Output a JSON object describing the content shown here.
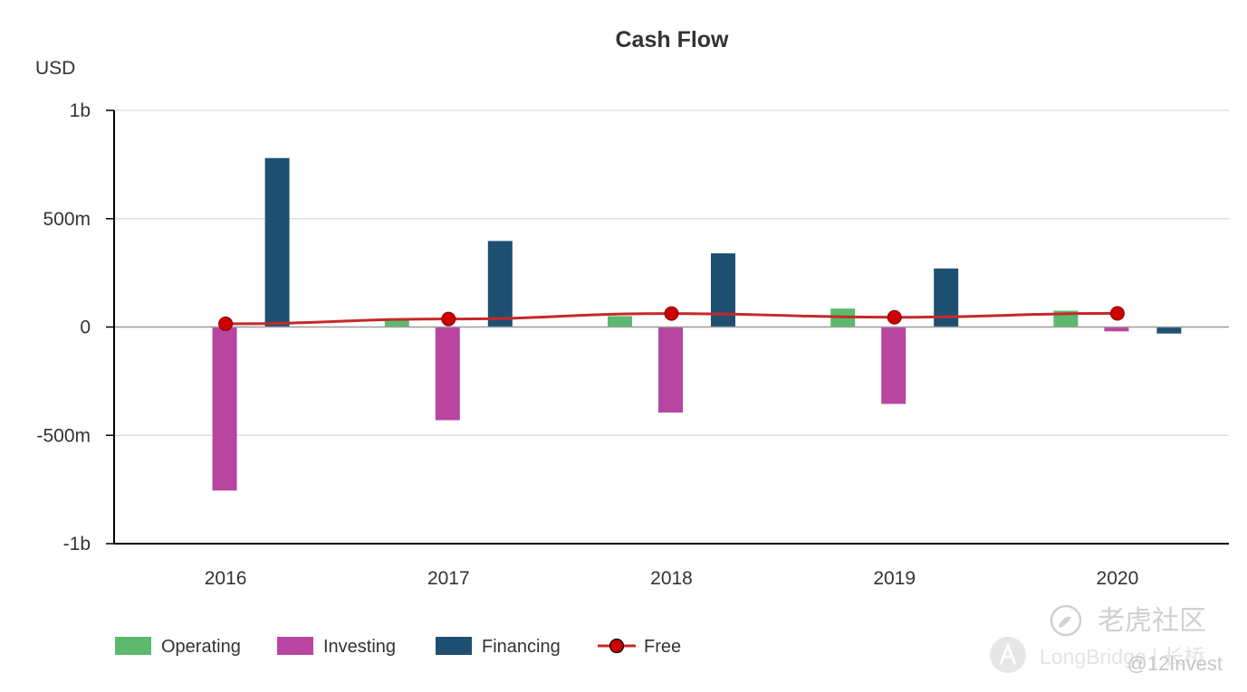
{
  "chart_data": {
    "type": "bar",
    "title": "Cash Flow",
    "ylabel": "USD",
    "xlabel": "",
    "ylim": [
      -1000000000,
      1000000000
    ],
    "yticks": [
      {
        "value": 1000000000,
        "label": "1b"
      },
      {
        "value": 500000000,
        "label": "500m"
      },
      {
        "value": 0,
        "label": "0"
      },
      {
        "value": -500000000,
        "label": "-500m"
      },
      {
        "value": -1000000000,
        "label": "-1b"
      }
    ],
    "categories": [
      "2016",
      "2017",
      "2018",
      "2019",
      "2020"
    ],
    "series": [
      {
        "name": "Operating",
        "kind": "bar",
        "color": "#5cb96e",
        "values": [
          0,
          35000000,
          50000000,
          85000000,
          75000000
        ]
      },
      {
        "name": "Investing",
        "kind": "bar",
        "color": "#b845a0",
        "values": [
          -755000000,
          -430000000,
          -395000000,
          -355000000,
          -20000000
        ]
      },
      {
        "name": "Financing",
        "kind": "bar",
        "color": "#1d5070",
        "values": [
          780000000,
          397000000,
          340000000,
          270000000,
          -30000000
        ]
      },
      {
        "name": "Free",
        "kind": "line",
        "color": "#c62828",
        "marker_color": "#cc0000",
        "values": [
          15000000,
          37000000,
          62000000,
          45000000,
          63000000
        ]
      }
    ],
    "grid": true,
    "legend_position": "bottom-left"
  },
  "watermark": {
    "brand_cn": "老虎社区",
    "brand_en": "LongBridge | 长桥",
    "user": "@12Invest"
  }
}
